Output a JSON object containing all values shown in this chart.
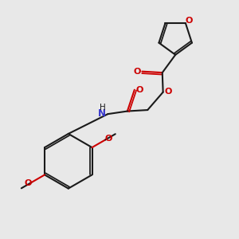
{
  "bg_color": "#e8e8e8",
  "bond_color": "#1a1a1a",
  "oxygen_color": "#cc0000",
  "nitrogen_color": "#3333cc",
  "line_width": 1.5,
  "dbo": 0.008,
  "xlim": [
    0,
    1
  ],
  "ylim": [
    0,
    1
  ]
}
